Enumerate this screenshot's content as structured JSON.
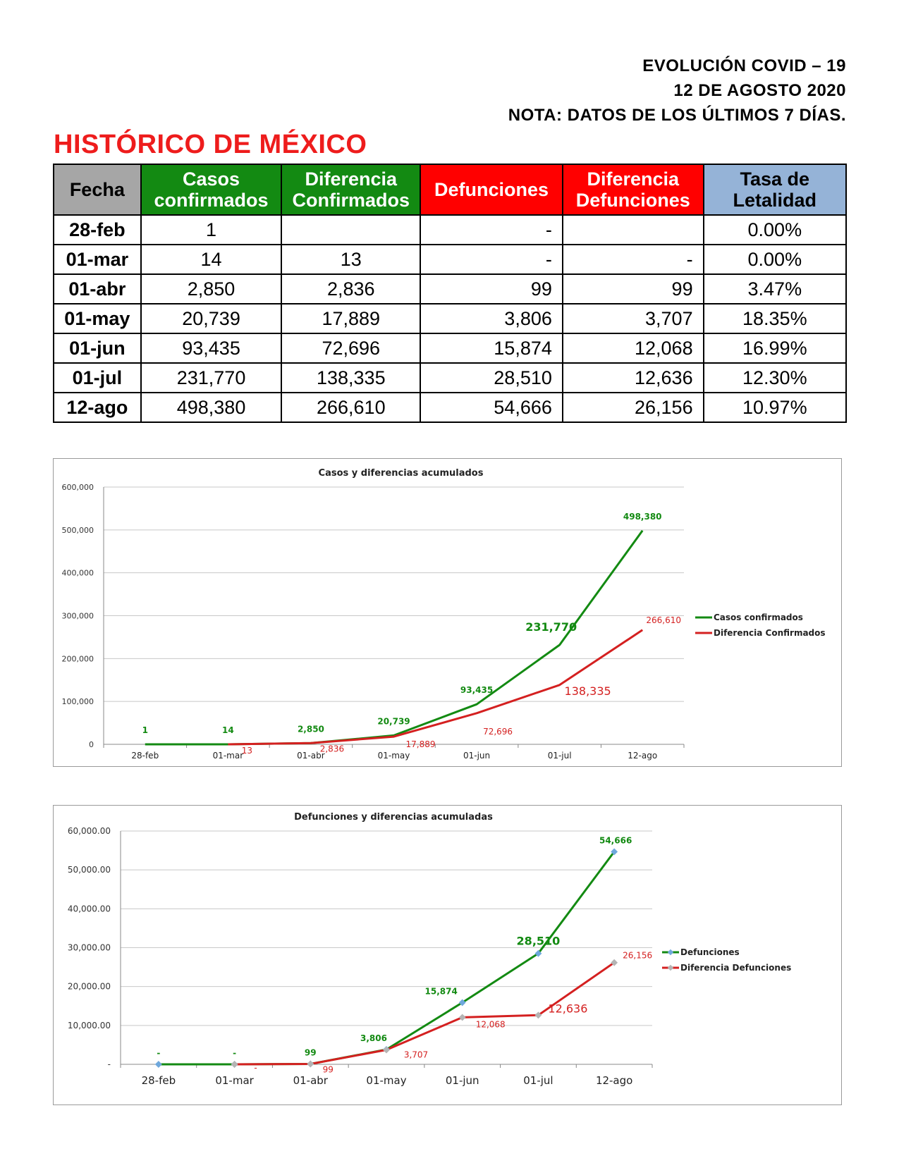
{
  "header": {
    "line1": "EVOLUCIÓN COVID – 19",
    "line2": "12 DE AGOSTO 2020",
    "line3": "NOTA: DATOS DE LOS ÚLTIMOS 7 DÍAS."
  },
  "title": "HISTÓRICO DE MÉXICO",
  "table": {
    "headers": {
      "fecha": "Fecha",
      "casos_1": "Casos",
      "casos_2": "confirmados",
      "dif_conf_1": "Diferencia",
      "dif_conf_2": "Confirmados",
      "defunciones": "Defunciones",
      "dif_def_1": "Diferencia",
      "dif_def_2": "Defunciones",
      "tasa_1": "Tasa de",
      "tasa_2": "Letalidad"
    },
    "rows": [
      {
        "fecha": "28-feb",
        "casos": "1",
        "dif_conf": "",
        "def": "-",
        "dif_def": "",
        "tasa": "0.00%"
      },
      {
        "fecha": "01-mar",
        "casos": "14",
        "dif_conf": "13",
        "def": "-",
        "dif_def": "-",
        "tasa": "0.00%"
      },
      {
        "fecha": "01-abr",
        "casos": "2,850",
        "dif_conf": "2,836",
        "def": "99",
        "dif_def": "99",
        "tasa": "3.47%"
      },
      {
        "fecha": "01-may",
        "casos": "20,739",
        "dif_conf": "17,889",
        "def": "3,806",
        "dif_def": "3,707",
        "tasa": "18.35%"
      },
      {
        "fecha": "01-jun",
        "casos": "93,435",
        "dif_conf": "72,696",
        "def": "15,874",
        "dif_def": "12,068",
        "tasa": "16.99%"
      },
      {
        "fecha": "01-jul",
        "casos": "231,770",
        "dif_conf": "138,335",
        "def": "28,510",
        "dif_def": "12,636",
        "tasa": "12.30%"
      },
      {
        "fecha": "12-ago",
        "casos": "498,380",
        "dif_conf": "266,610",
        "def": "54,666",
        "dif_def": "26,156",
        "tasa": "10.97%"
      }
    ]
  },
  "chart_data": [
    {
      "type": "line",
      "title": "Casos y diferencias acumulados",
      "xlabel": "",
      "ylabel": "",
      "categories": [
        "28-feb",
        "01-mar",
        "01-abr",
        "01-may",
        "01-jun",
        "01-jul",
        "12-ago"
      ],
      "ylim": [
        0,
        600000
      ],
      "yticks": [
        0,
        100000,
        200000,
        300000,
        400000,
        500000,
        600000
      ],
      "ytick_labels": [
        "0",
        "100,000",
        "200,000",
        "300,000",
        "400,000",
        "500,000",
        "600,000"
      ],
      "grid": true,
      "legend_position": "right",
      "series": [
        {
          "name": "Casos confirmados",
          "color": "#138a12",
          "values": [
            1,
            14,
            2850,
            20739,
            93435,
            231770,
            498380
          ],
          "labels": [
            "1",
            "14",
            "2,850",
            "20,739",
            "93,435",
            "231,770",
            "498,380"
          ]
        },
        {
          "name": "Diferencia Confirmados",
          "color": "#d42020",
          "values": [
            null,
            13,
            2836,
            17889,
            72696,
            138335,
            266610
          ],
          "labels": [
            "",
            "13",
            "2,836",
            "17,889",
            "72,696",
            "138,335",
            "266,610"
          ]
        }
      ]
    },
    {
      "type": "line",
      "title": "Defunciones y diferencias acumuladas",
      "xlabel": "",
      "ylabel": "",
      "categories": [
        "28-feb",
        "01-mar",
        "01-abr",
        "01-may",
        "01-jun",
        "01-jul",
        "12-ago"
      ],
      "ylim": [
        0,
        60000
      ],
      "yticks": [
        0,
        10000,
        20000,
        30000,
        40000,
        50000,
        60000
      ],
      "ytick_labels": [
        "-",
        "10,000.00",
        "20,000.00",
        "30,000.00",
        "40,000.00",
        "50,000.00",
        "60,000.00"
      ],
      "grid": true,
      "legend_position": "right",
      "series": [
        {
          "name": "Defunciones",
          "color": "#138a12",
          "marker_color": "#6fa8dc",
          "values": [
            0,
            0,
            99,
            3806,
            15874,
            28510,
            54666
          ],
          "labels": [
            "-",
            "-",
            "99",
            "3,806",
            "15,874",
            "28,510",
            "54,666"
          ]
        },
        {
          "name": "Diferencia Defunciones",
          "color": "#d42020",
          "marker_color": "#b4b4b4",
          "values": [
            null,
            0,
            99,
            3707,
            12068,
            12636,
            26156
          ],
          "labels": [
            "",
            "-",
            "99",
            "3,707",
            "12,068",
            "12,636",
            "26,156"
          ]
        }
      ]
    }
  ]
}
